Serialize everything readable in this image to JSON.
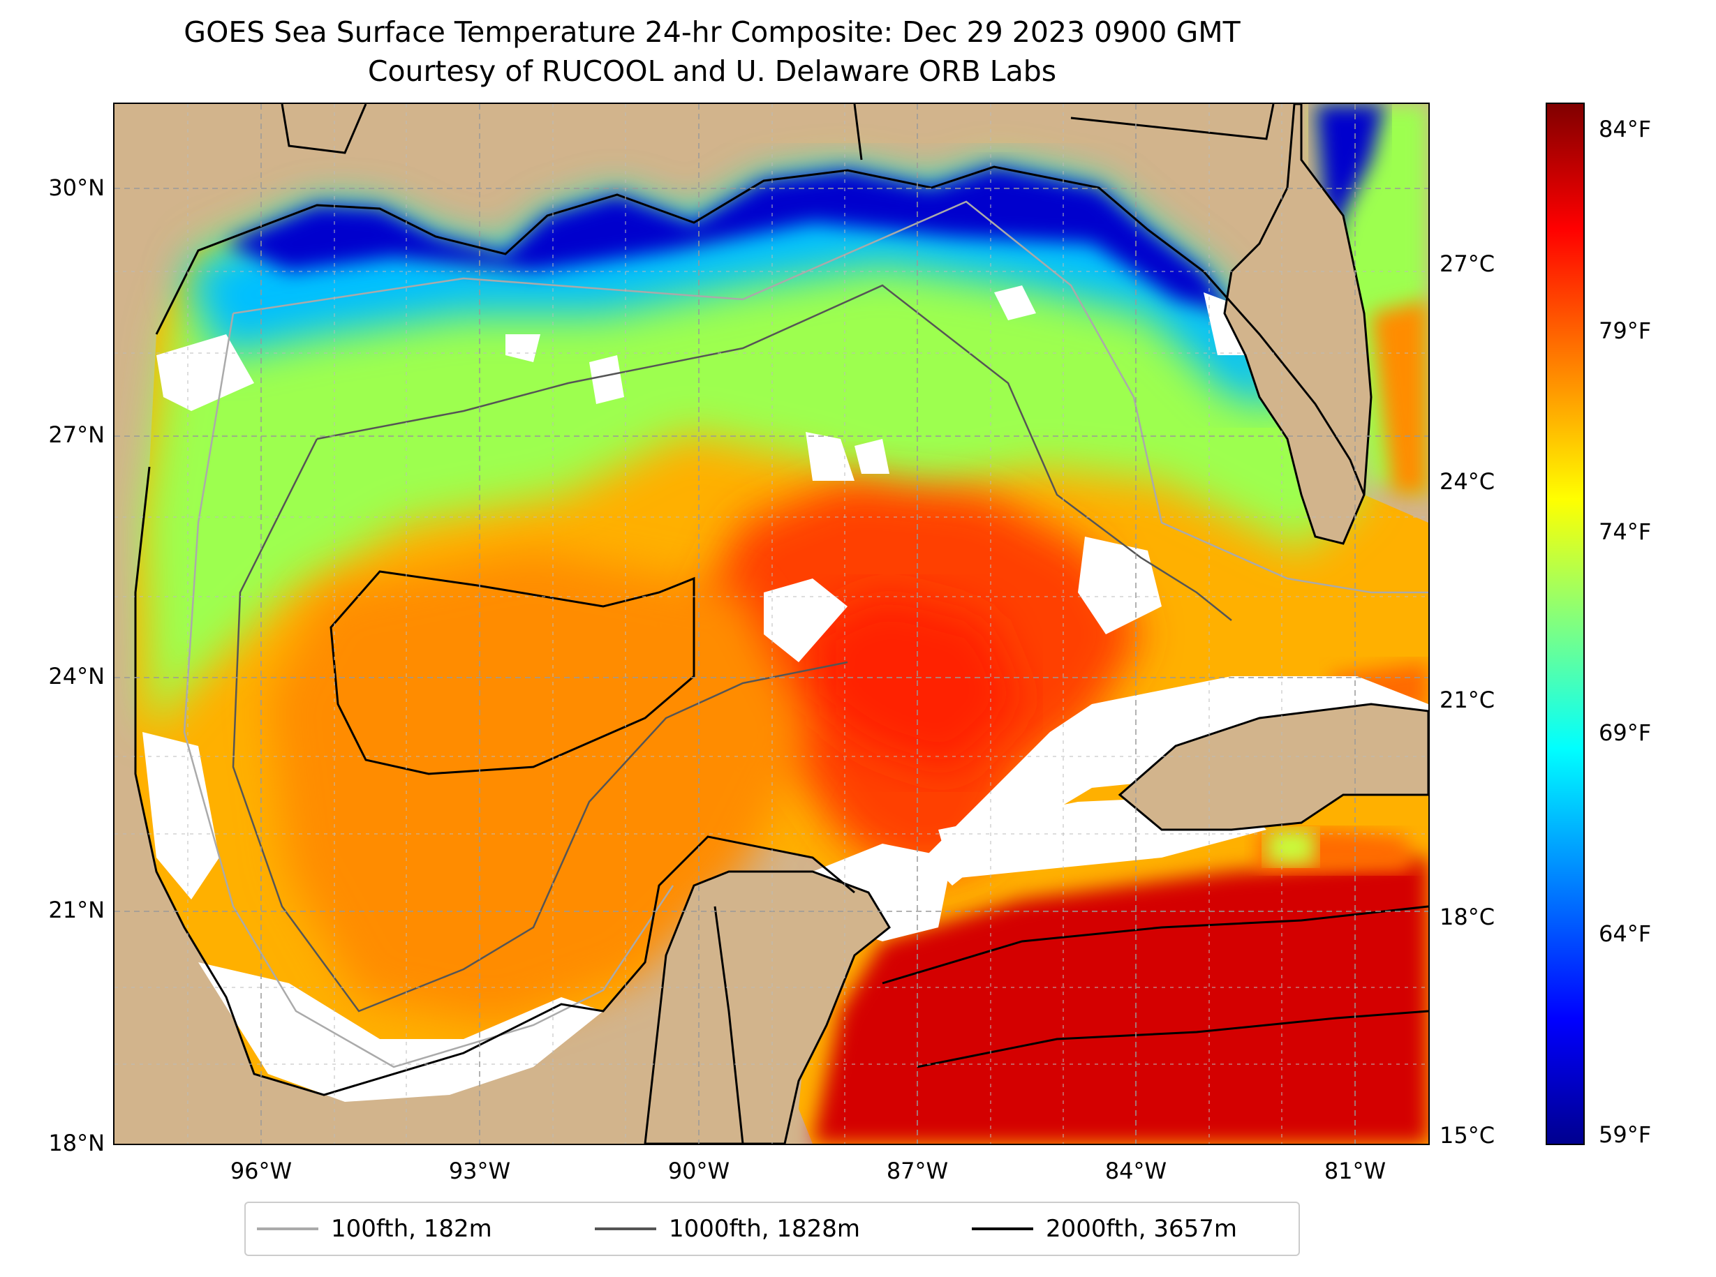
{
  "title": {
    "line1": "GOES Sea Surface Temperature 24-hr Composite: Dec 29 2023 0900 GMT",
    "line2": "Courtesy of RUCOOL and U. Delaware ORB Labs"
  },
  "map": {
    "lat_ticks": [
      "30°N",
      "27°N",
      "24°N",
      "21°N",
      "18°N"
    ],
    "lon_ticks": [
      "96°W",
      "93°W",
      "90°W",
      "87°W",
      "84°W",
      "81°W"
    ],
    "colors": {
      "land": "#d2b48c",
      "no_data": "#ffffff",
      "grid": "#999999"
    }
  },
  "colorbar": {
    "colormap": "jet",
    "celsius_ticks": [
      "27°C",
      "24°C",
      "21°C",
      "18°C",
      "15°C"
    ],
    "fahrenheit_ticks": [
      "84°F",
      "79°F",
      "74°F",
      "69°F",
      "64°F",
      "59°F"
    ]
  },
  "legend": {
    "items": [
      {
        "label": "100fth, 182m",
        "color": "#aaaaaa"
      },
      {
        "label": "1000fth, 1828m",
        "color": "#555555"
      },
      {
        "label": "2000fth, 3657m",
        "color": "#000000"
      }
    ]
  }
}
